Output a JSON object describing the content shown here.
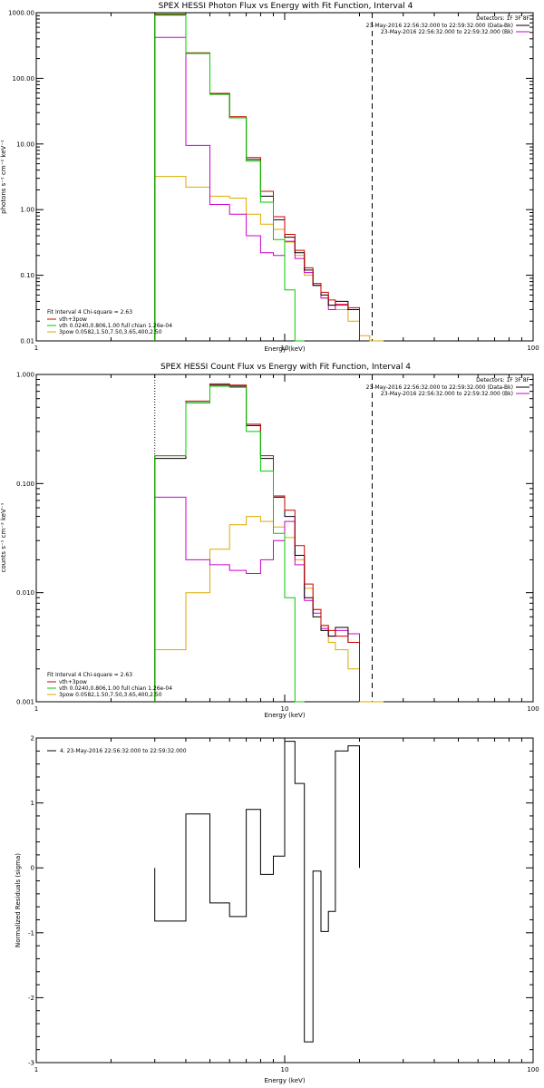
{
  "chart_data": [
    {
      "type": "line",
      "title": "SPEX HESSI Photon Flux vs Energy with Fit Function, Interval 4",
      "xlabel": "Energy (keV)",
      "ylabel": "photons s⁻¹ cm⁻² keV⁻¹",
      "xscale": "log",
      "yscale": "log",
      "xlim": [
        1,
        100
      ],
      "ylim": [
        0.01,
        1000
      ],
      "x_ticks": [
        "1",
        "10",
        "100"
      ],
      "y_ticks": [
        "0.01",
        "0.10",
        "1.00",
        "10.00",
        "100.00",
        "1000.00"
      ],
      "x_edges": [
        3,
        4,
        5,
        6,
        7,
        8,
        9,
        10,
        11,
        12,
        13,
        14,
        15,
        16,
        18,
        20,
        22,
        25
      ],
      "fit_range_lines": [
        3,
        22.5
      ],
      "detectors": "Detectors: 1F 3F 8F",
      "time_legend": [
        {
          "label": "23-May-2016 22:56:32.000 to 22:59:32.000 (Data-Bk)",
          "color": "#000000"
        },
        {
          "label": "23-May-2016 22:56:32.000 to 22:59:32.000 (Bk)",
          "color": "#cc00cc"
        }
      ],
      "fit_info": {
        "header": "Fit Interval 4   Chi-square = 2.63",
        "items": [
          {
            "label": "vth+3pow",
            "color": "#cc0000"
          },
          {
            "label": "vth 0.0240,0.806,1.00  full chian 1.26e-04",
            "color": "#00cc00"
          },
          {
            "label": "3pow 0.0582,1.50,7.50,3.65,400,2.50",
            "color": "#ddaa00"
          }
        ]
      },
      "series": [
        {
          "name": "Data-Bk",
          "color": "#000000",
          "values": [
            920,
            240,
            58,
            25,
            5.8,
            1.6,
            0.7,
            0.38,
            0.22,
            0.12,
            0.07,
            0.05,
            0.035,
            0.04,
            0.03,
            null,
            null
          ]
        },
        {
          "name": "vth+3pow",
          "color": "#cc0000",
          "values": [
            950,
            245,
            59,
            26,
            6.2,
            1.9,
            0.78,
            0.42,
            0.24,
            0.13,
            0.075,
            0.055,
            0.042,
            0.036,
            0.032,
            null,
            null
          ]
        },
        {
          "name": "vth",
          "color": "#00cc00",
          "values": [
            930,
            240,
            57,
            25,
            5.5,
            1.3,
            0.35,
            0.06,
            0.009,
            null,
            null,
            null,
            null,
            null,
            null,
            null,
            null
          ]
        },
        {
          "name": "3pow",
          "color": "#ddaa00",
          "values": [
            3.2,
            2.2,
            1.6,
            1.5,
            0.85,
            0.6,
            0.5,
            0.32,
            0.2,
            0.1,
            0.07,
            0.045,
            0.035,
            0.03,
            0.02,
            0.012,
            0.01
          ]
        },
        {
          "name": "Bk",
          "color": "#cc00cc",
          "values": [
            420,
            9.5,
            1.2,
            0.85,
            0.4,
            0.22,
            0.2,
            0.33,
            0.18,
            0.11,
            0.07,
            0.045,
            0.03,
            0.035,
            0.03,
            null,
            null
          ]
        }
      ]
    },
    {
      "type": "line",
      "title": "SPEX HESSI Count Flux vs Energy with Fit Function, Interval 4",
      "xlabel": "Energy (keV)",
      "ylabel": "counts s⁻¹ cm⁻² keV⁻¹",
      "xscale": "log",
      "yscale": "log",
      "xlim": [
        1,
        100
      ],
      "ylim": [
        0.001,
        1
      ],
      "x_ticks": [
        "1",
        "10",
        "100"
      ],
      "y_ticks": [
        "0.001",
        "0.010",
        "0.100",
        "1.000"
      ],
      "x_edges": [
        3,
        4,
        5,
        6,
        7,
        8,
        9,
        10,
        11,
        12,
        13,
        14,
        15,
        16,
        18,
        20,
        22,
        25
      ],
      "fit_range_lines": [
        3,
        22.5
      ],
      "detectors": "Detectors: 1F 3F 8F",
      "time_legend": [
        {
          "label": "23-May-2016 22:56:32.000 to 22:59:32.000 (Data-Bk)",
          "color": "#000000"
        },
        {
          "label": "23-May-2016 22:56:32.000 to 22:59:32.000 (Bk)",
          "color": "#cc00cc"
        }
      ],
      "fit_info": {
        "header": "Fit Interval 4   Chi-square = 2.63",
        "items": [
          {
            "label": "vth+3pow",
            "color": "#cc0000"
          },
          {
            "label": "vth 0.0240,0.806,1.00  full chian 1.26e-04",
            "color": "#00cc00"
          },
          {
            "label": "3pow 0.0582,1.50,7.50,3.65,400,2.50",
            "color": "#ddaa00"
          }
        ]
      },
      "series": [
        {
          "name": "Data-Bk",
          "color": "#000000",
          "values": [
            0.17,
            0.55,
            0.8,
            0.78,
            0.34,
            0.17,
            0.075,
            0.05,
            0.022,
            0.009,
            0.006,
            0.0045,
            0.004,
            0.0048,
            0.0035,
            null,
            null
          ]
        },
        {
          "name": "vth+3pow",
          "color": "#cc0000",
          "values": [
            0.18,
            0.57,
            0.82,
            0.8,
            0.35,
            0.18,
            0.077,
            0.057,
            0.027,
            0.012,
            0.007,
            0.005,
            0.0045,
            0.004,
            0.0035,
            null,
            null
          ]
        },
        {
          "name": "vth",
          "color": "#00cc00",
          "values": [
            0.18,
            0.55,
            0.78,
            0.76,
            0.3,
            0.13,
            0.035,
            0.009,
            0.0009,
            null,
            null,
            null,
            null,
            null,
            null,
            null,
            null
          ]
        },
        {
          "name": "3pow",
          "color": "#ddaa00",
          "values": [
            0.003,
            0.01,
            0.025,
            0.042,
            0.05,
            0.045,
            0.04,
            0.032,
            0.02,
            0.011,
            0.007,
            0.005,
            0.0035,
            0.003,
            0.002,
            0.001,
            0.0009
          ]
        },
        {
          "name": "Bk",
          "color": "#cc00cc",
          "values": [
            0.075,
            0.02,
            0.018,
            0.016,
            0.015,
            0.02,
            0.03,
            0.045,
            0.018,
            0.0085,
            0.0065,
            0.0047,
            0.004,
            0.0045,
            0.0042,
            null,
            null
          ]
        }
      ]
    },
    {
      "type": "line",
      "xlabel": "Energy (keV)",
      "ylabel": "Normalized Residuals (sigma)",
      "xscale": "log",
      "xlim": [
        1,
        100
      ],
      "ylim": [
        -3,
        2
      ],
      "x_ticks": [
        "1",
        "10",
        "100"
      ],
      "y_ticks": [
        "-3",
        "-2",
        "-1",
        "0",
        "1",
        "2"
      ],
      "x_edges": [
        3,
        4,
        5,
        6,
        7,
        8,
        9,
        10,
        11,
        12,
        13,
        14,
        15,
        16,
        18,
        20,
        22
      ],
      "legend": "4. 23-May-2016 22:56:32.000 to 22:59:32.000",
      "series": [
        {
          "name": "Residuals",
          "color": "#000000",
          "values": [
            -0.82,
            0.83,
            -0.54,
            -0.75,
            0.9,
            -0.1,
            0.18,
            1.95,
            1.3,
            -2.68,
            -0.05,
            -0.98,
            -0.67,
            1.8,
            1.88,
            null
          ]
        }
      ]
    }
  ]
}
